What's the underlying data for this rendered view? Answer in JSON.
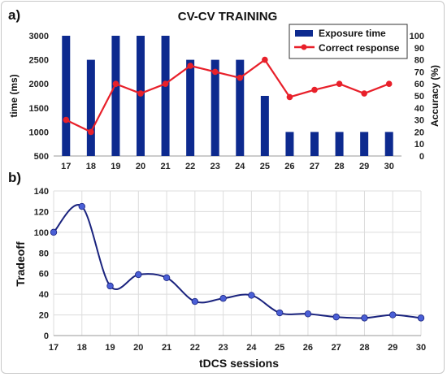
{
  "chart_data": [
    {
      "panel_label": "a)",
      "type": "bar",
      "title": "CV-CV TRAINING",
      "categories": [
        "17",
        "18",
        "19",
        "20",
        "21",
        "22",
        "23",
        "24",
        "25",
        "26",
        "27",
        "28",
        "29",
        "30"
      ],
      "ylabel": "time (ms)",
      "ylabel_right": "Accuracy (%)",
      "ylim": [
        500,
        3000
      ],
      "yticks": [
        "500",
        "1000",
        "1500",
        "2000",
        "2500",
        "3000"
      ],
      "ylim_right": [
        0,
        100
      ],
      "yticks_right": [
        "0",
        "10",
        "20",
        "30",
        "40",
        "50",
        "60",
        "70",
        "80",
        "90",
        "100"
      ],
      "legend_position": "top-right",
      "series": [
        {
          "name": "Exposure time",
          "type": "bar",
          "axis": "left",
          "color": "#0d2a8f",
          "values": [
            3000,
            2500,
            3000,
            3000,
            3000,
            2500,
            2500,
            2500,
            1750,
            1000,
            1000,
            1000,
            1000,
            1000
          ]
        },
        {
          "name": "Correct response",
          "type": "line",
          "axis": "right",
          "color": "#e8202a",
          "values": [
            30,
            20,
            60,
            52,
            60,
            75,
            70,
            65,
            80,
            49,
            55,
            60,
            52,
            60
          ]
        }
      ]
    },
    {
      "panel_label": "b)",
      "type": "line",
      "title": "",
      "categories": [
        "17",
        "18",
        "19",
        "20",
        "21",
        "22",
        "23",
        "24",
        "25",
        "26",
        "27",
        "28",
        "29",
        "30"
      ],
      "xlabel": "tDCS sessions",
      "ylabel": "Tradeoff",
      "ylim": [
        0,
        140
      ],
      "yticks": [
        "0",
        "20",
        "40",
        "60",
        "80",
        "100",
        "120",
        "140"
      ],
      "grid": true,
      "series": [
        {
          "name": "",
          "color": "#1a237e",
          "marker_color": "#4a5fd6",
          "values": [
            100,
            125,
            48,
            59,
            56,
            33,
            36,
            39,
            22,
            21,
            18,
            17,
            20,
            17
          ]
        }
      ]
    }
  ]
}
